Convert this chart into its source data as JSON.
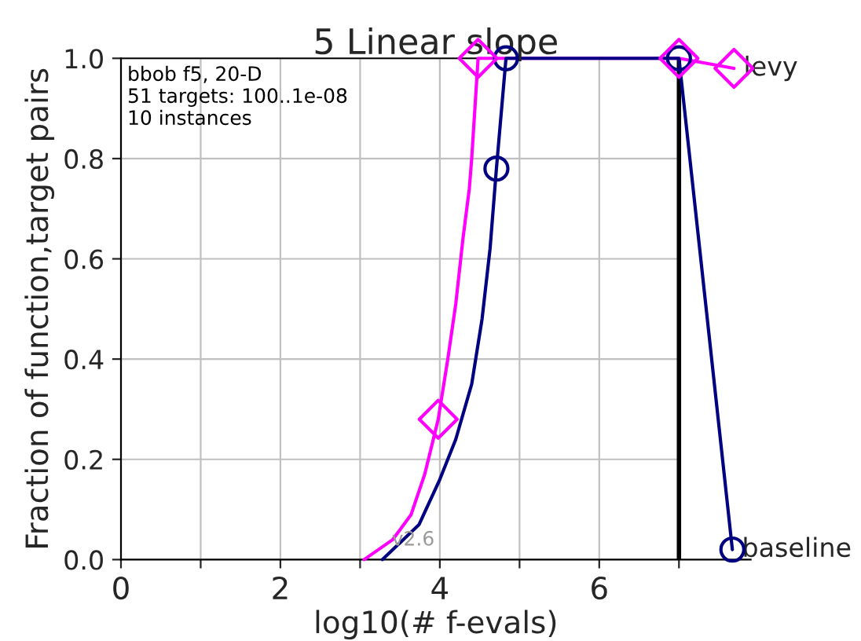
{
  "chart_data": {
    "type": "line",
    "title": "5 Linear slope",
    "xlabel": "log10(# f-evals)",
    "ylabel": "Fraction of function,target pairs",
    "annotations": [
      "bbob f5, 20-D\n51 targets: 100..1e-08\n10 instances",
      "v2.6"
    ],
    "xlim": [
      0,
      7.9
    ],
    "ylim": [
      0,
      1
    ],
    "legend": "right",
    "ref_lines": [
      {
        "axis": "x",
        "value": 7,
        "color": "#000000"
      }
    ],
    "xticks": [
      0,
      {
        "value": 1,
        "label": null
      },
      2,
      {
        "value": 3,
        "label": null
      },
      4,
      {
        "value": 5,
        "label": null
      },
      6,
      {
        "value": 7,
        "label": null
      }
    ],
    "yticks": [
      {
        "value": 0,
        "label": "0.0"
      },
      {
        "value": 0.2,
        "label": "0.2"
      },
      {
        "value": 0.4,
        "label": "0.4"
      },
      {
        "value": 0.6,
        "label": "0.6"
      },
      {
        "value": 0.8,
        "label": "0.8"
      },
      {
        "value": 1,
        "label": "1.0"
      }
    ],
    "grid": true,
    "marker": "none",
    "line_style": "solid",
    "series": [
      {
        "name": "levy",
        "color": "#ff00ff",
        "x": [
          3.05,
          3.41,
          3.64,
          3.81,
          3.98,
          4.1,
          4.2,
          4.29,
          4.37,
          4.4,
          4.48,
          7,
          7.69
        ],
        "values": [
          0,
          0.04,
          0.09,
          0.17,
          0.28,
          0.4,
          0.51,
          0.64,
          0.74,
          0.8,
          1,
          1,
          0.98
        ]
      },
      {
        "name": "baseline",
        "color": "#000080",
        "x": [
          3.28,
          3.74,
          4.0,
          4.2,
          4.4,
          4.53,
          4.63,
          4.69,
          4.71,
          4.83,
          7,
          7.67
        ],
        "values": [
          0,
          0.07,
          0.16,
          0.24,
          0.35,
          0.48,
          0.62,
          0.74,
          0.78,
          1,
          1,
          0.02
        ]
      },
      {
        "type": "scatter",
        "marker": "diamond",
        "color": "#ff00ff",
        "x": [
          3.98,
          4.48,
          7,
          7.69
        ],
        "values": [
          0.28,
          1,
          1,
          0.98
        ]
      },
      {
        "type": "scatter",
        "marker": "circle",
        "color": "#000080",
        "x": [
          4.71,
          4.83,
          7,
          7.67
        ],
        "values": [
          0.78,
          1,
          1,
          0.02
        ]
      }
    ]
  }
}
